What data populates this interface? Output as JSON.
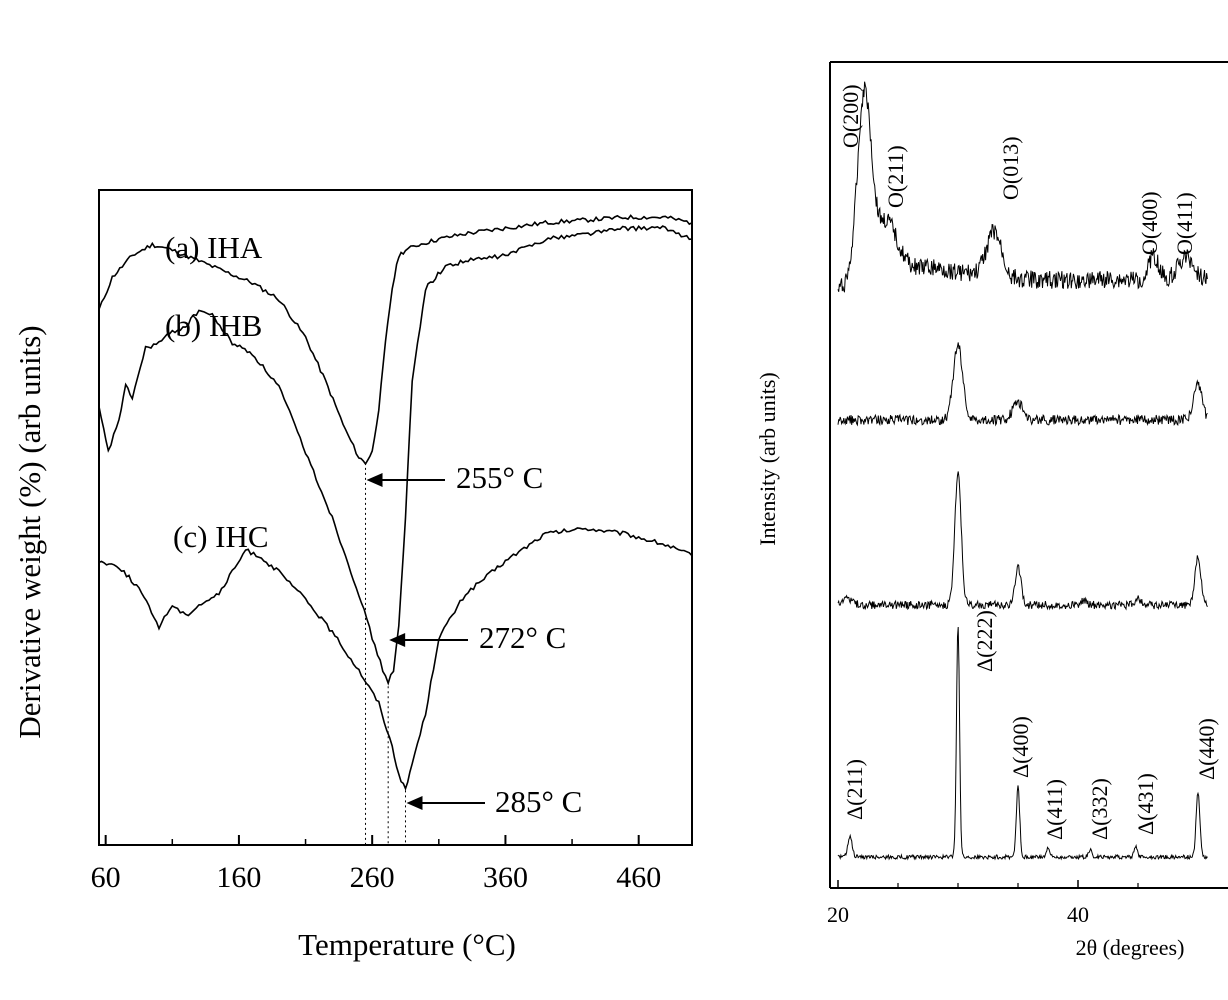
{
  "chart_data": [
    {
      "type": "line",
      "title": "",
      "xlabel": "Temperature (°C)",
      "ylabel": "Derivative weight (%)  (arb units)",
      "xlim": [
        55,
        500
      ],
      "x_ticks": [
        "60",
        "160",
        "260",
        "360",
        "460"
      ],
      "x_tick_values": [
        60,
        160,
        260,
        360,
        460
      ],
      "y_ticks_labeled": false,
      "grid": false,
      "series": [
        {
          "name": "(a) IHA",
          "label_text": "(a) IHA",
          "x": [
            55,
            65,
            80,
            95,
            110,
            130,
            150,
            170,
            190,
            210,
            225,
            240,
            250,
            255,
            260,
            265,
            270,
            275,
            280,
            285,
            295,
            310,
            330,
            360,
            390,
            420,
            450,
            480,
            500
          ],
          "y": [
            78,
            84,
            88,
            90,
            89,
            87,
            85,
            83,
            80,
            73,
            65,
            56,
            51,
            50,
            52,
            60,
            72,
            82,
            88,
            89,
            90,
            91,
            92,
            93,
            94,
            94.5,
            95,
            95,
            94
          ],
          "minimum": {
            "x": 255,
            "label": "255° C"
          }
        },
        {
          "name": "(b) IHB",
          "label_text": "(b) IHB",
          "x": [
            55,
            62,
            70,
            75,
            80,
            90,
            100,
            110,
            120,
            130,
            140,
            155,
            170,
            190,
            210,
            230,
            250,
            260,
            268,
            272,
            276,
            280,
            285,
            290,
            300,
            315,
            330,
            360,
            390,
            420,
            450,
            480,
            500
          ],
          "y": [
            60,
            52,
            58,
            64,
            62,
            71,
            72,
            74,
            75,
            78,
            77,
            72,
            70,
            64,
            52,
            40,
            26,
            18,
            12,
            10,
            12,
            20,
            40,
            65,
            82,
            86,
            87,
            88,
            91,
            92,
            93,
            93,
            91
          ],
          "minimum": {
            "x": 272,
            "label": "272° C"
          }
        },
        {
          "name": "(c) IHC",
          "label_text": "(c) IHC",
          "x": [
            55,
            70,
            85,
            100,
            110,
            120,
            130,
            145,
            155,
            165,
            175,
            190,
            210,
            230,
            250,
            265,
            275,
            280,
            285,
            290,
            300,
            310,
            330,
            360,
            390,
            420,
            450,
            480,
            500
          ],
          "y": [
            32,
            31,
            27,
            20,
            24,
            22,
            24,
            26,
            30,
            34,
            33,
            30,
            25,
            19,
            12,
            6,
            -2,
            -7,
            -10,
            -5,
            4,
            18,
            26,
            32,
            37,
            38,
            37,
            35,
            33
          ],
          "minimum": {
            "x": 285,
            "label": "285° C"
          }
        }
      ]
    },
    {
      "type": "line",
      "title": "",
      "xlabel": "2θ (degrees)",
      "ylabel": "Intensity (arb units)",
      "xlim": [
        20,
        50
      ],
      "x_ticks": [
        "20",
        "40"
      ],
      "x_tick_values": [
        20,
        40
      ],
      "y_ticks_labeled": false,
      "grid": false,
      "series": [
        {
          "name": "top",
          "peaks_2theta": [
            22.2,
            24.0,
            33.0,
            46.3,
            49.0
          ],
          "peak_labels": [
            "O(200)",
            "O(211)",
            "O(013)",
            "O(400)",
            "O(411)"
          ]
        },
        {
          "name": "second",
          "peaks_2theta": [
            30.0,
            35.0,
            50.0
          ],
          "peak_labels": []
        },
        {
          "name": "third",
          "peaks_2theta": [
            30.0,
            35.0,
            45.0,
            50.0
          ],
          "peak_labels": []
        },
        {
          "name": "bottom",
          "peaks_2theta": [
            21.0,
            30.0,
            35.0,
            37.5,
            41.0,
            44.8,
            50.0
          ],
          "peak_labels": [
            "Δ(211)",
            "Δ(222)",
            "Δ(400)",
            "Δ(411)",
            "Δ(332)",
            "Δ(431)",
            "Δ(440)"
          ]
        }
      ]
    }
  ]
}
